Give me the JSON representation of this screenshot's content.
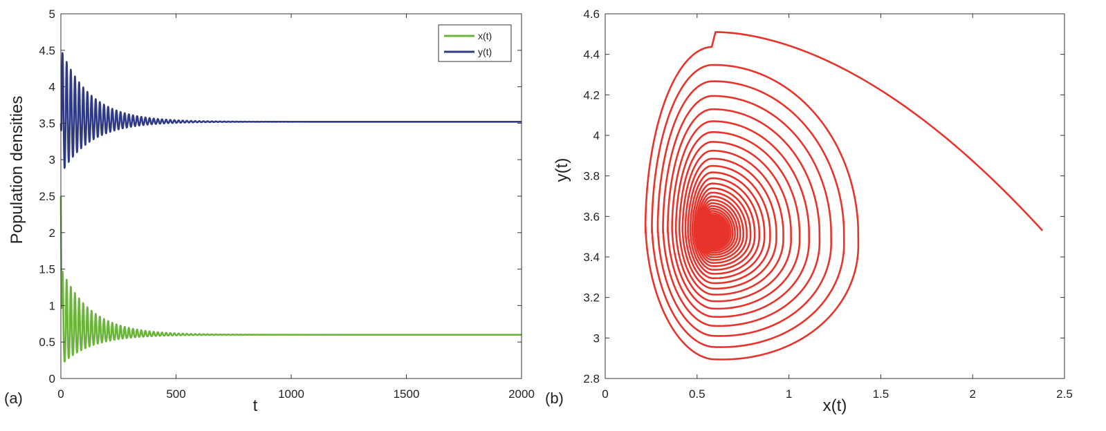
{
  "chart_data": [
    {
      "panel_label": "(a)",
      "type": "line",
      "xlabel": "t",
      "ylabel": "Population densities",
      "xlim": [
        0,
        2000
      ],
      "ylim": [
        0,
        5
      ],
      "xticks": [
        0,
        500,
        1000,
        1500,
        2000
      ],
      "xtick_labels": [
        "0",
        "500",
        "1000",
        "1500",
        "2000"
      ],
      "yticks": [
        0,
        0.5,
        1,
        1.5,
        2,
        2.5,
        3,
        3.5,
        4,
        4.5,
        5
      ],
      "ytick_labels": [
        "0",
        "0.5",
        "1",
        "1.5",
        "2",
        "2.5",
        "3",
        "3.5",
        "4",
        "4.5",
        "5"
      ],
      "legend_position": "top-right",
      "grid": false,
      "series": [
        {
          "name": "x(t)",
          "color": "#6ab539",
          "initial_value": 2.5,
          "equilibrium": 0.6,
          "first_peak": 1.52,
          "first_trough": 0.18,
          "oscillation_period": 18,
          "decay_time_constant": 130
        },
        {
          "name": "y(t)",
          "color": "#2e3a87",
          "initial_value": 3.5,
          "equilibrium": 3.52,
          "first_peak": 4.52,
          "first_trough": 2.8,
          "oscillation_period": 18,
          "decay_time_constant": 130
        }
      ]
    },
    {
      "panel_label": "(b)",
      "type": "line",
      "subtype": "phase-portrait",
      "xlabel": "x(t)",
      "ylabel": "y(t)",
      "xlim": [
        0,
        2.5
      ],
      "ylim": [
        2.8,
        4.6
      ],
      "xticks": [
        0,
        0.5,
        1,
        1.5,
        2,
        2.5
      ],
      "xtick_labels": [
        "0",
        "0.5",
        "1",
        "1.5",
        "2",
        "2.5"
      ],
      "yticks": [
        2.8,
        3,
        3.2,
        3.4,
        3.6,
        3.8,
        4,
        4.2,
        4.4,
        4.6
      ],
      "ytick_labels": [
        "2.8",
        "3",
        "3.2",
        "3.4",
        "3.6",
        "3.8",
        "4",
        "4.2",
        "4.4",
        "4.6"
      ],
      "grid": false,
      "series": [
        {
          "color": "#e8332a",
          "start_point": [
            2.38,
            3.53
          ],
          "equilibrium_point": [
            0.58,
            3.52
          ],
          "outer_loop_extent": {
            "x_min": 0.18,
            "x_max": 1.51,
            "y_min": 2.81,
            "y_max": 4.51
          },
          "spiral_turns": 40
        }
      ]
    }
  ]
}
